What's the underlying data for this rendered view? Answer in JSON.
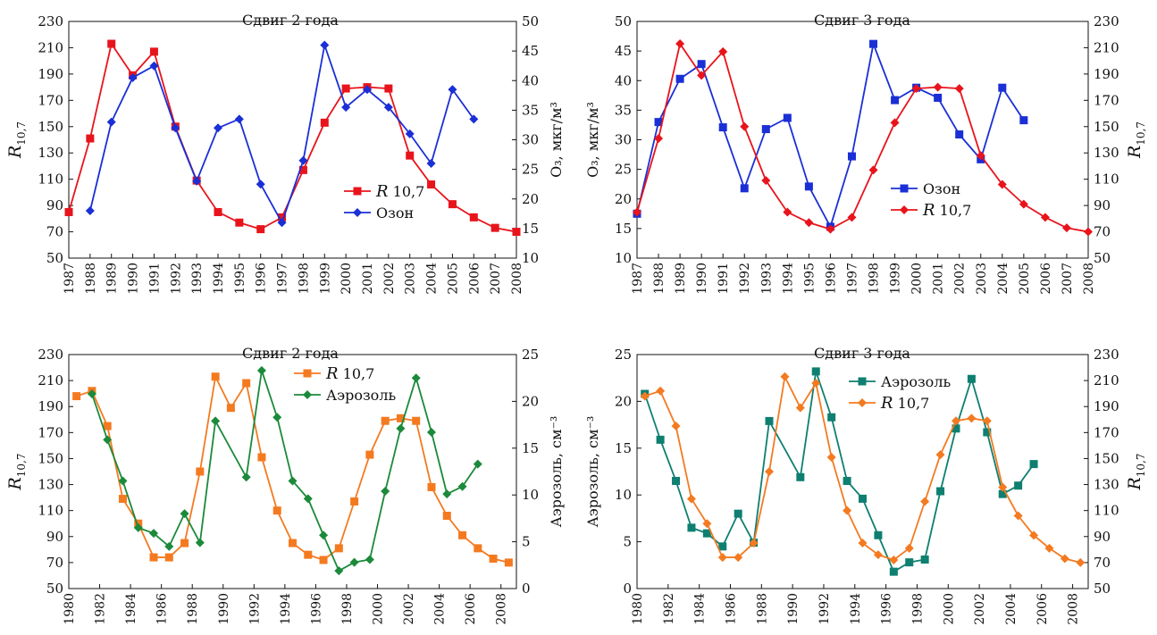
{
  "chart_data": [
    {
      "type": "line",
      "title": "Сдвиг 2 года",
      "y_left": {
        "label_main": "R",
        "label_sub": "10,7",
        "ylim": [
          50,
          230
        ],
        "ticks": [
          50,
          70,
          90,
          110,
          130,
          150,
          170,
          190,
          210,
          230
        ]
      },
      "y_right": {
        "label": "O₃, мкг/м³",
        "ylim": [
          10,
          50
        ],
        "ticks": [
          10,
          15,
          20,
          25,
          30,
          35,
          40,
          45,
          50
        ]
      },
      "x_ticks": [
        "1987",
        "1988",
        "1989",
        "1990",
        "1991",
        "1992",
        "1993",
        "1994",
        "1995",
        "1996",
        "1997",
        "1998",
        "1999",
        "2000",
        "2001",
        "2002",
        "2003",
        "2004",
        "2005",
        "2006",
        "2007",
        "2008"
      ],
      "xlim": [
        1987,
        2008
      ],
      "legend_position": "center-right",
      "series": [
        {
          "name": "R 10,7",
          "axis": "left",
          "color": "#e8141c",
          "marker": "square",
          "x": [
            1987,
            1988,
            1989,
            1990,
            1991,
            1992,
            1993,
            1994,
            1995,
            1996,
            1997,
            1998,
            1999,
            2000,
            2001,
            2002,
            2003,
            2004,
            2005,
            2006,
            2007,
            2008
          ],
          "y": [
            85,
            141,
            213,
            189,
            207,
            150,
            109,
            85,
            77,
            72,
            81,
            117,
            153,
            179,
            180,
            179,
            128,
            106,
            91,
            81,
            73,
            70
          ]
        },
        {
          "name": "Озон",
          "axis": "right",
          "color": "#1a2fd6",
          "marker": "diamond",
          "x": [
            1988,
            1989,
            1990,
            1991,
            1992,
            1993,
            1994,
            1995,
            1996,
            1997,
            1998,
            1999,
            2000,
            2001,
            2002,
            2003,
            2004,
            2005,
            2006
          ],
          "y": [
            18,
            33,
            40.5,
            42.5,
            32,
            23,
            32,
            33.5,
            22.5,
            16,
            26.5,
            46,
            35.5,
            38.5,
            35.5,
            31,
            26,
            38.5,
            33.5
          ]
        }
      ]
    },
    {
      "type": "line",
      "title": "Сдвиг 3 года",
      "y_left": {
        "label": "O₃, мкг/м³",
        "ylim": [
          10,
          50
        ],
        "ticks": [
          10,
          15,
          20,
          25,
          30,
          35,
          40,
          45,
          50
        ]
      },
      "y_right": {
        "label_main": "R",
        "label_sub": "10,7",
        "ylim": [
          50,
          230
        ],
        "ticks": [
          50,
          70,
          90,
          110,
          130,
          150,
          170,
          190,
          210,
          230
        ]
      },
      "x_ticks": [
        "1987",
        "1988",
        "1989",
        "1990",
        "1991",
        "1992",
        "1993",
        "1994",
        "1995",
        "1996",
        "1997",
        "1998",
        "1999",
        "2000",
        "2001",
        "2002",
        "2003",
        "2004",
        "2005",
        "2006",
        "2007",
        "2008"
      ],
      "xlim": [
        1987,
        2008
      ],
      "legend_position": "center-right",
      "series": [
        {
          "name": "Озон",
          "axis": "left",
          "color": "#1a2fd6",
          "marker": "square",
          "x": [
            1987,
            1988,
            1989,
            1990,
            1991,
            1992,
            1993,
            1994,
            1995,
            1996,
            1997,
            1998,
            1999,
            2000,
            2001,
            2002,
            2003,
            2004,
            2005
          ],
          "y": [
            17.5,
            33,
            40.3,
            42.8,
            32.1,
            21.8,
            31.8,
            33.7,
            22.1,
            15.3,
            27.2,
            46.2,
            36.7,
            38.8,
            37.1,
            30.9,
            26.7,
            38.8,
            33.3
          ]
        },
        {
          "name": "R 10,7",
          "axis": "right",
          "color": "#e8141c",
          "marker": "diamond",
          "x": [
            1987,
            1988,
            1989,
            1990,
            1991,
            1992,
            1993,
            1994,
            1995,
            1996,
            1997,
            1998,
            1999,
            2000,
            2001,
            2002,
            2003,
            2004,
            2005,
            2006,
            2007,
            2008
          ],
          "y": [
            85,
            141,
            213,
            189,
            207,
            150,
            109,
            85,
            77,
            72,
            81,
            117,
            153,
            179,
            180,
            179,
            128,
            106,
            91,
            81,
            73,
            70
          ]
        }
      ]
    },
    {
      "type": "line",
      "title": "Сдвиг 2 года",
      "y_left": {
        "label_main": "R",
        "label_sub": "10,7",
        "ylim": [
          50,
          230
        ],
        "ticks": [
          50,
          70,
          90,
          110,
          130,
          150,
          170,
          190,
          210,
          230
        ]
      },
      "y_right": {
        "label": "Аэрозоль, см⁻³",
        "ylim": [
          0,
          25
        ],
        "ticks": [
          0,
          5,
          10,
          15,
          20,
          25
        ]
      },
      "x_ticks": [
        "1980",
        "1982",
        "1984",
        "1986",
        "1988",
        "1990",
        "1992",
        "1994",
        "1996",
        "1998",
        "2000",
        "2002",
        "2004",
        "2006",
        "2008"
      ],
      "xlim": [
        1980,
        2009
      ],
      "legend_position": "top-right",
      "series": [
        {
          "name": "R 10,7",
          "axis": "left",
          "color": "#f47a20",
          "marker": "square",
          "x": [
            1980.5,
            1981.5,
            1982.5,
            1983.5,
            1984.5,
            1985.5,
            1986.5,
            1987.5,
            1988.5,
            1989.5,
            1990.5,
            1991.5,
            1992.5,
            1993.5,
            1994.5,
            1995.5,
            1996.5,
            1997.5,
            1998.5,
            1999.5,
            2000.5,
            2001.5,
            2002.5,
            2003.5,
            2004.5,
            2005.5,
            2006.5,
            2007.5,
            2008.5
          ],
          "y": [
            198,
            202,
            175,
            119,
            100,
            74,
            74,
            85,
            140,
            213,
            189,
            208,
            151,
            110,
            85,
            76,
            72,
            81,
            117,
            153,
            179,
            181,
            179,
            128,
            106,
            91,
            81,
            73,
            70
          ]
        },
        {
          "name": "Аэрозоль",
          "axis": "right",
          "color": "#1b8a3a",
          "marker": "diamond",
          "x": [
            1981.5,
            1982.5,
            1983.5,
            1984.5,
            1985.5,
            1986.5,
            1987.5,
            1988.5,
            1989.5,
            1991.5,
            1992.5,
            1993.5,
            1994.5,
            1995.5,
            1996.5,
            1997.5,
            1998.5,
            1999.5,
            2000.5,
            2001.5,
            2002.5,
            2003.5,
            2004.5,
            2005.5,
            2006.5
          ],
          "y": [
            20.8,
            15.9,
            11.5,
            6.5,
            5.9,
            4.5,
            8,
            4.9,
            17.9,
            11.9,
            23.3,
            18.3,
            11.5,
            9.6,
            5.7,
            1.9,
            2.8,
            3.1,
            10.4,
            17.1,
            22.5,
            16.7,
            10.1,
            10.9,
            13.3
          ]
        }
      ]
    },
    {
      "type": "line",
      "title": "Сдвиг 3 года",
      "y_left": {
        "label": "Аэрозоль, см⁻³",
        "ylim": [
          0,
          25
        ],
        "ticks": [
          0,
          5,
          10,
          15,
          20,
          25
        ]
      },
      "y_right": {
        "label_main": "R",
        "label_sub": "10,7",
        "ylim": [
          50,
          230
        ],
        "ticks": [
          50,
          70,
          90,
          110,
          130,
          150,
          170,
          190,
          210,
          230
        ]
      },
      "x_ticks": [
        "1980",
        "1982",
        "1984",
        "1986",
        "1988",
        "1990",
        "1992",
        "1994",
        "1996",
        "1998",
        "2000",
        "2002",
        "2004",
        "2006",
        "2008"
      ],
      "xlim": [
        1980,
        2009
      ],
      "legend_position": "top-center",
      "series": [
        {
          "name": "Аэрозоль",
          "axis": "left",
          "color": "#0e7f70",
          "marker": "square",
          "x": [
            1980.5,
            1981.5,
            1982.5,
            1983.5,
            1984.5,
            1985.5,
            1986.5,
            1987.5,
            1988.5,
            1990.5,
            1991.5,
            1992.5,
            1993.5,
            1994.5,
            1995.5,
            1996.5,
            1997.5,
            1998.5,
            1999.5,
            2000.5,
            2001.5,
            2002.5,
            2003.5,
            2004.5,
            2005.5
          ],
          "y": [
            20.8,
            15.9,
            11.5,
            6.5,
            5.9,
            4.5,
            8,
            4.9,
            17.9,
            11.9,
            23.2,
            18.3,
            11.5,
            9.6,
            5.7,
            1.8,
            2.8,
            3.1,
            10.4,
            17.1,
            22.4,
            16.7,
            10.1,
            11,
            13.3
          ]
        },
        {
          "name": "R 10,7",
          "axis": "right",
          "color": "#f47a20",
          "marker": "diamond",
          "x": [
            1980.5,
            1981.5,
            1982.5,
            1983.5,
            1984.5,
            1985.5,
            1986.5,
            1987.5,
            1988.5,
            1989.5,
            1990.5,
            1991.5,
            1992.5,
            1993.5,
            1994.5,
            1995.5,
            1996.5,
            1997.5,
            1998.5,
            1999.5,
            2000.5,
            2001.5,
            2002.5,
            2003.5,
            2004.5,
            2005.5,
            2006.5,
            2007.5,
            2008.5
          ],
          "y": [
            198,
            202,
            175,
            119,
            100,
            74,
            74,
            85,
            140,
            213,
            189,
            208,
            151,
            110,
            85,
            76,
            72,
            81,
            117,
            153,
            179,
            181,
            179,
            128,
            106,
            91,
            81,
            73,
            70
          ]
        }
      ]
    }
  ]
}
